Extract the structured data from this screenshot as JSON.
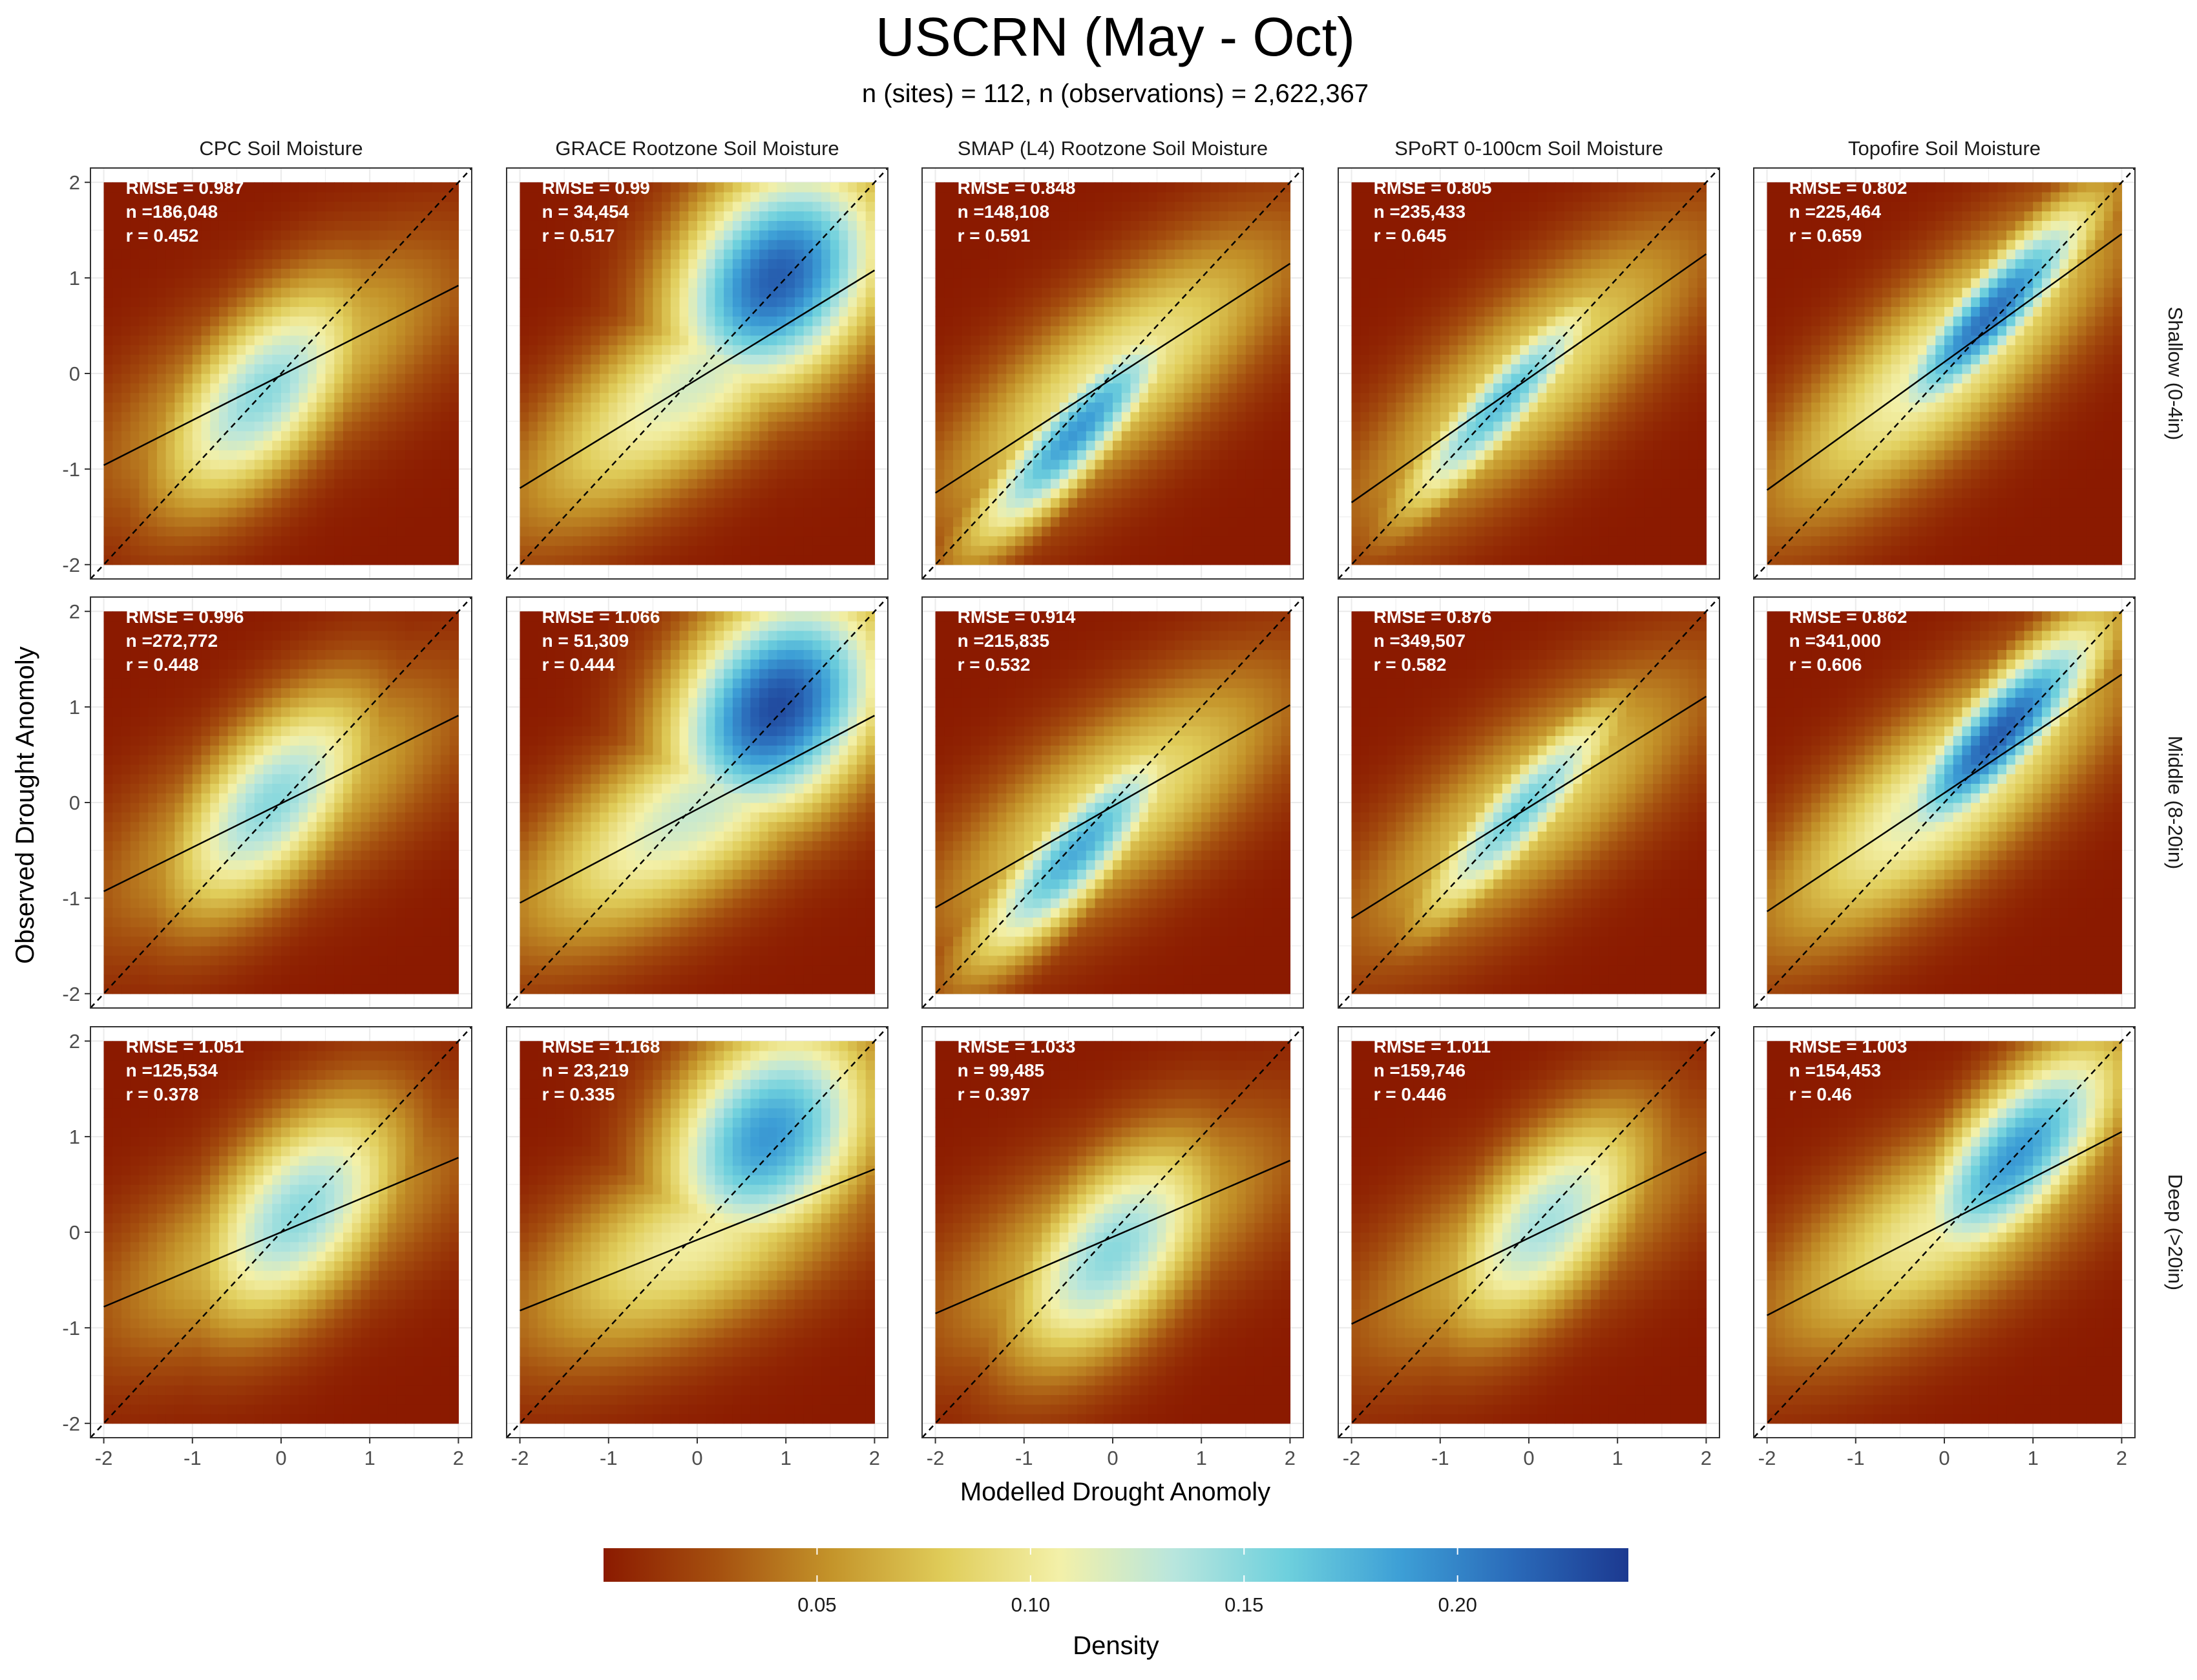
{
  "title": "USCRN (May - Oct)",
  "subtitle": "n (sites) = 112, n (observations) = 2,622,367",
  "xlabel": "Modelled Drought Anomoly",
  "ylabel": "Observed Drought Anomoly",
  "colorbar": {
    "title": "Density",
    "ticks": [
      0.05,
      0.1,
      0.15,
      0.2
    ],
    "tick_labels": [
      "0.05",
      "0.10",
      "0.15",
      "0.20"
    ],
    "range": [
      0.0,
      0.24
    ],
    "colors": [
      "#8b1a00",
      "#a5500f",
      "#c4942a",
      "#e0cd5a",
      "#f3f0a8",
      "#b9e6dd",
      "#6ed0dd",
      "#3d9fd6",
      "#2a6ab9",
      "#1c3990"
    ]
  },
  "chart_data": {
    "type": "heatmap",
    "facet_columns": [
      "CPC Soil Moisture",
      "GRACE Rootzone Soil Moisture",
      "SMAP (L4) Rootzone Soil Moisture",
      "SPoRT 0-100cm Soil Moisture",
      "Topofire Soil Moisture"
    ],
    "facet_rows": [
      "Shallow (0-4in)",
      "Middle (8-20in)",
      "Deep (>20in)"
    ],
    "x_ticks": [
      -2,
      -1,
      0,
      1,
      2
    ],
    "y_ticks": [
      -2,
      -1,
      0,
      1,
      2
    ],
    "xlim": [
      -2.15,
      2.15
    ],
    "ylim": [
      -2.15,
      2.15
    ],
    "reference_line": "1:1 dashed",
    "grid": true,
    "panels": [
      [
        {
          "rmse": "RMSE = 0.987",
          "n": "n =186,048",
          "r": "r = 0.452",
          "fit": {
            "intercept": -0.02,
            "slope": 0.47
          }
        },
        {
          "rmse": "RMSE = 0.99",
          "n": "n = 34,454",
          "r": "r = 0.517",
          "fit": {
            "intercept": -0.06,
            "slope": 0.57
          }
        },
        {
          "rmse": "RMSE = 0.848",
          "n": "n =148,108",
          "r": "r = 0.591",
          "fit": {
            "intercept": -0.05,
            "slope": 0.6
          }
        },
        {
          "rmse": "RMSE = 0.805",
          "n": "n =235,433",
          "r": "r = 0.645",
          "fit": {
            "intercept": -0.05,
            "slope": 0.65
          }
        },
        {
          "rmse": "RMSE = 0.802",
          "n": "n =225,464",
          "r": "r = 0.659",
          "fit": {
            "intercept": 0.12,
            "slope": 0.67
          }
        }
      ],
      [
        {
          "rmse": "RMSE = 0.996",
          "n": "n =272,772",
          "r": "r = 0.448",
          "fit": {
            "intercept": -0.01,
            "slope": 0.46
          }
        },
        {
          "rmse": "RMSE = 1.066",
          "n": "n = 51,309",
          "r": "r = 0.444",
          "fit": {
            "intercept": -0.07,
            "slope": 0.49
          }
        },
        {
          "rmse": "RMSE = 0.914",
          "n": "n =215,835",
          "r": "r = 0.532",
          "fit": {
            "intercept": -0.04,
            "slope": 0.53
          }
        },
        {
          "rmse": "RMSE = 0.876",
          "n": "n =349,507",
          "r": "r = 0.582",
          "fit": {
            "intercept": -0.05,
            "slope": 0.58
          }
        },
        {
          "rmse": "RMSE = 0.862",
          "n": "n =341,000",
          "r": "r = 0.606",
          "fit": {
            "intercept": 0.1,
            "slope": 0.62
          }
        }
      ],
      [
        {
          "rmse": "RMSE = 1.051",
          "n": "n =125,534",
          "r": "r = 0.378",
          "fit": {
            "intercept": 0.0,
            "slope": 0.39
          }
        },
        {
          "rmse": "RMSE = 1.168",
          "n": "n = 23,219",
          "r": "r = 0.335",
          "fit": {
            "intercept": -0.08,
            "slope": 0.37
          }
        },
        {
          "rmse": "RMSE = 1.033",
          "n": "n = 99,485",
          "r": "r = 0.397",
          "fit": {
            "intercept": -0.05,
            "slope": 0.4
          }
        },
        {
          "rmse": "RMSE = 1.011",
          "n": "n =159,746",
          "r": "r = 0.446",
          "fit": {
            "intercept": -0.06,
            "slope": 0.45
          }
        },
        {
          "rmse": "RMSE = 1.003",
          "n": "n =154,453",
          "r": "r = 0.46",
          "fit": {
            "intercept": 0.09,
            "slope": 0.48
          }
        }
      ]
    ],
    "density_hotspots": [
      [
        {
          "center": [
            -0.2,
            -0.2
          ],
          "corr": 0.6,
          "peak": 0.15
        },
        {
          "center": [
            0.9,
            1.0
          ],
          "corr": 0.3,
          "peak": 0.22
        },
        {
          "center": [
            -0.4,
            -0.6
          ],
          "corr": 0.88,
          "peak": 0.19
        },
        {
          "center": [
            -0.3,
            -0.3
          ],
          "corr": 0.9,
          "peak": 0.17
        },
        {
          "center": [
            0.5,
            0.6
          ],
          "corr": 0.88,
          "peak": 0.21
        }
      ],
      [
        {
          "center": [
            -0.1,
            0.0
          ],
          "corr": 0.6,
          "peak": 0.15
        },
        {
          "center": [
            0.9,
            1.0
          ],
          "corr": 0.3,
          "peak": 0.23
        },
        {
          "center": [
            -0.4,
            -0.5
          ],
          "corr": 0.85,
          "peak": 0.18
        },
        {
          "center": [
            -0.1,
            -0.1
          ],
          "corr": 0.88,
          "peak": 0.16
        },
        {
          "center": [
            0.6,
            0.7
          ],
          "corr": 0.85,
          "peak": 0.22
        }
      ],
      [
        {
          "center": [
            0.2,
            0.2
          ],
          "corr": 0.5,
          "peak": 0.15
        },
        {
          "center": [
            0.8,
            1.0
          ],
          "corr": 0.3,
          "peak": 0.19
        },
        {
          "center": [
            0.0,
            -0.2
          ],
          "corr": 0.55,
          "peak": 0.15
        },
        {
          "center": [
            0.2,
            0.1
          ],
          "corr": 0.6,
          "peak": 0.14
        },
        {
          "center": [
            0.8,
            0.8
          ],
          "corr": 0.7,
          "peak": 0.19
        }
      ]
    ]
  }
}
